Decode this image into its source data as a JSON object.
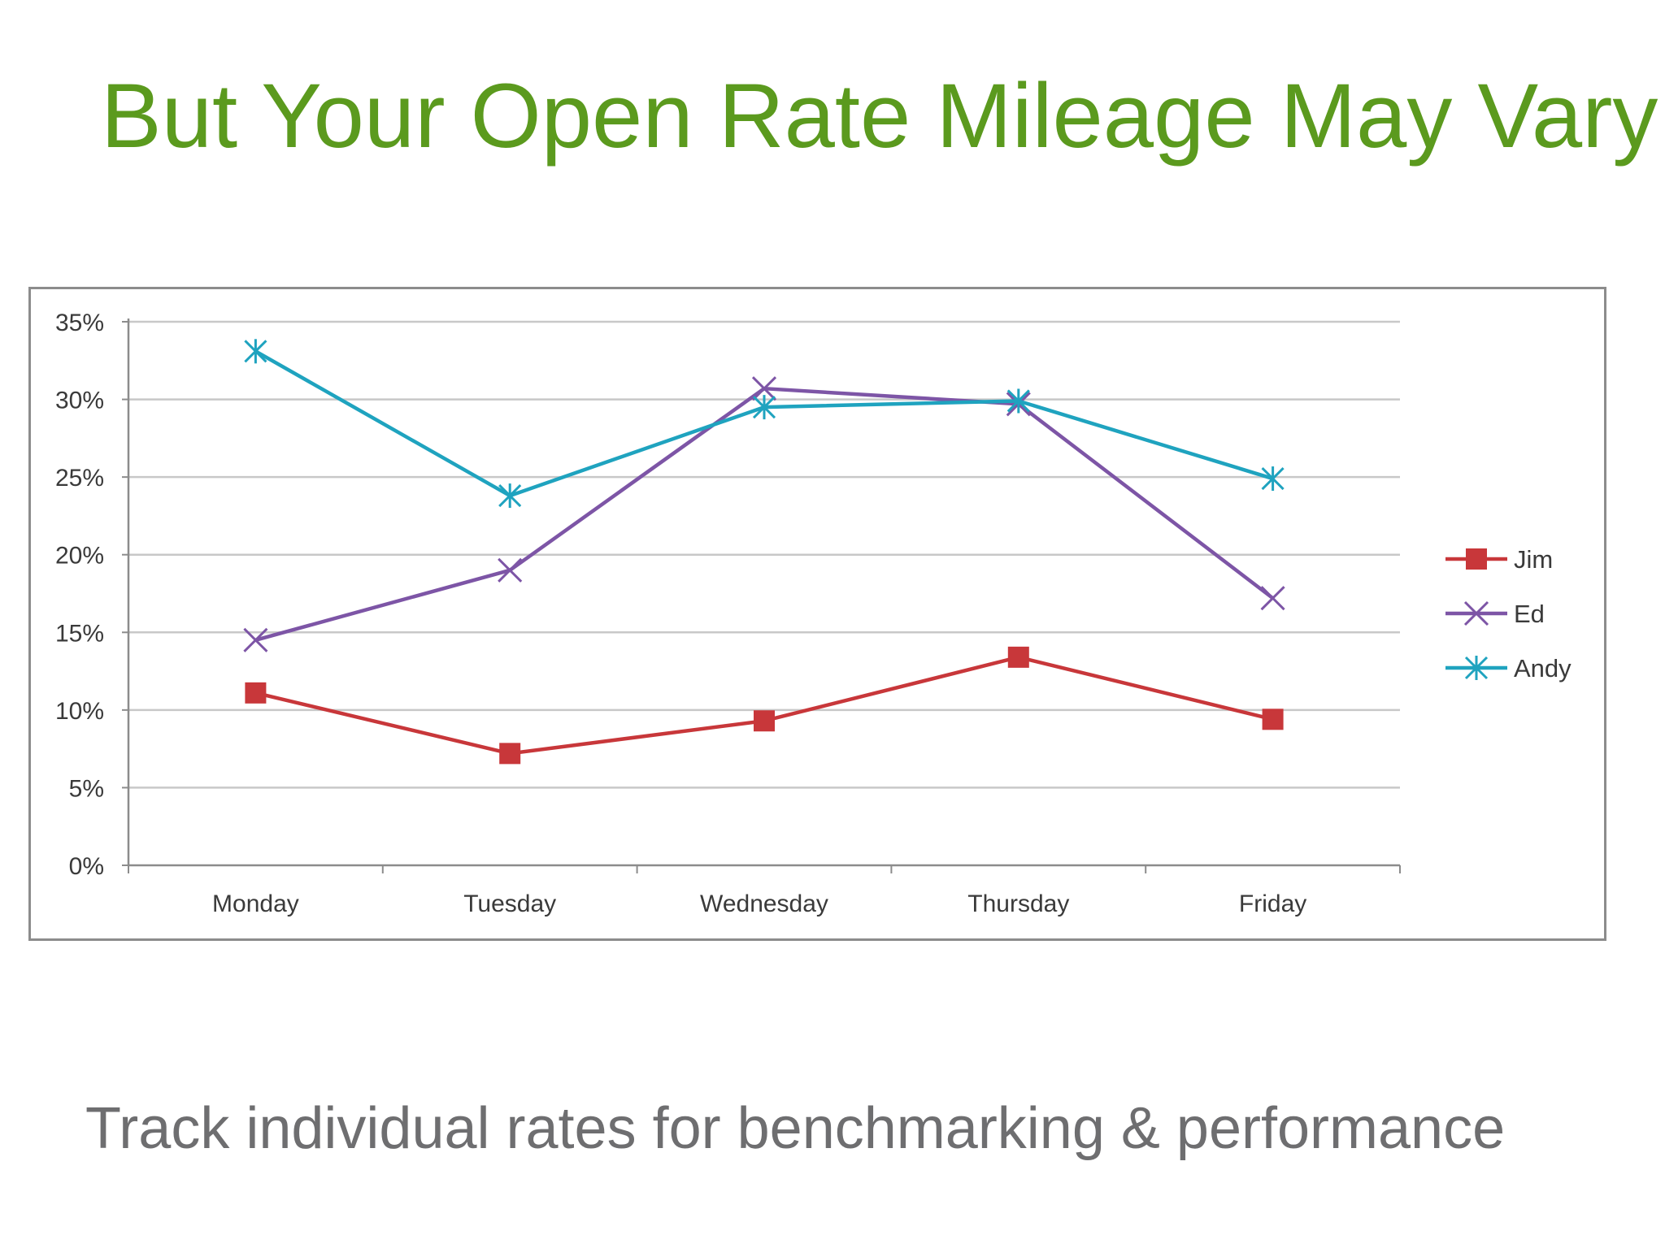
{
  "slide": {
    "title": "But Your Open Rate Mileage May Vary",
    "caption": "Track individual rates for benchmarking & performance"
  },
  "colors": {
    "title": "#5b9a1e",
    "caption": "#6e6e70",
    "grid": "#c8c8c8",
    "frame": "#8c8c8c"
  },
  "chart_data": {
    "type": "line",
    "title": "",
    "xlabel": "",
    "ylabel": "",
    "categories": [
      "Monday",
      "Tuesday",
      "Wednesday",
      "Thursday",
      "Friday"
    ],
    "ylim": [
      0,
      0.35
    ],
    "y_ticks": [
      {
        "value": 0,
        "label": "0%"
      },
      {
        "value": 0.05,
        "label": "5%"
      },
      {
        "value": 0.1,
        "label": "10%"
      },
      {
        "value": 0.15,
        "label": "15%"
      },
      {
        "value": 0.2,
        "label": "20%"
      },
      {
        "value": 0.25,
        "label": "25%"
      },
      {
        "value": 0.3,
        "label": "30%"
      },
      {
        "value": 0.35,
        "label": "35%"
      }
    ],
    "grid": true,
    "legend_position": "right",
    "series": [
      {
        "name": "Jim",
        "color": "#c8373a",
        "marker": "square",
        "values": [
          0.111,
          0.072,
          0.093,
          0.134,
          0.094
        ]
      },
      {
        "name": "Ed",
        "color": "#7d55a6",
        "marker": "x",
        "values": [
          0.145,
          0.19,
          0.307,
          0.297,
          0.172
        ]
      },
      {
        "name": "Andy",
        "color": "#1fa3bf",
        "marker": "asterisk",
        "values": [
          0.331,
          0.238,
          0.295,
          0.299,
          0.249
        ]
      }
    ]
  }
}
